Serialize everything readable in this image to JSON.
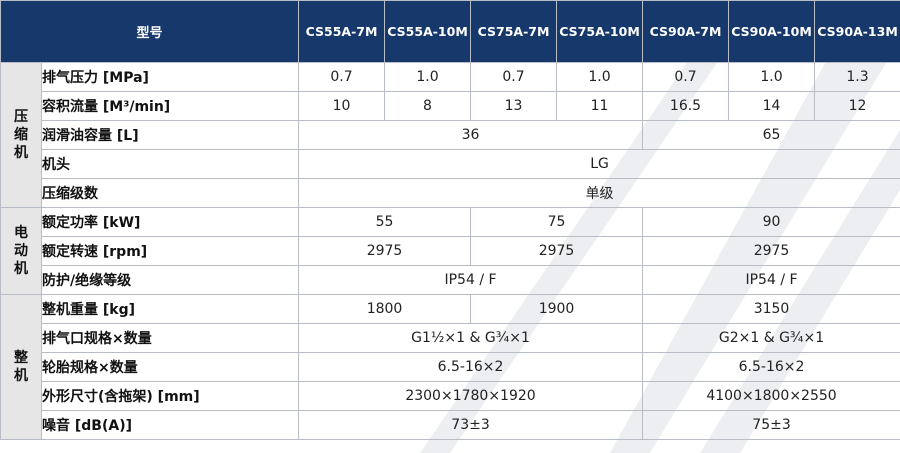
{
  "header": {
    "model_label": "型号",
    "models": [
      "CS55A-7M",
      "CS55A-10M",
      "CS75A-7M",
      "CS75A-10M",
      "CS90A-7M",
      "CS90A-10M",
      "CS90A-13M"
    ]
  },
  "groups": {
    "compressor": [
      "压",
      "缩",
      "机"
    ],
    "motor": [
      "电",
      "动",
      "机"
    ],
    "unit": [
      "整",
      "机"
    ]
  },
  "rows": {
    "exhaust_pressure": {
      "label": "排气压力 [MPa]",
      "values": [
        "0.7",
        "1.0",
        "0.7",
        "1.0",
        "0.7",
        "1.0",
        "1.3"
      ]
    },
    "volume_flow": {
      "label": "容积流量 [M³/min]",
      "values": [
        "10",
        "8",
        "13",
        "11",
        "16.5",
        "14",
        "12"
      ]
    },
    "oil_capacity": {
      "label": "润滑油容量 [L]",
      "values": [
        "36",
        "65"
      ]
    },
    "airend": {
      "label": "机头",
      "value": "LG"
    },
    "stages": {
      "label": "压缩级数",
      "value": "单级"
    },
    "rated_power": {
      "label": "额定功率 [kW]",
      "values": [
        "55",
        "75",
        "90"
      ]
    },
    "rated_speed": {
      "label": "额定转速 [rpm]",
      "values": [
        "2975",
        "2975",
        "2975"
      ]
    },
    "protection": {
      "label": "防护/绝缘等级",
      "values": [
        "IP54 / F",
        "IP54 / F"
      ]
    },
    "weight": {
      "label": "整机重量 [kg]",
      "values": [
        "1800",
        "1900",
        "3150"
      ]
    },
    "outlet": {
      "label": "排气口规格×数量",
      "values": [
        "G1½×1 & G¾×1",
        "G2×1 & G¾×1"
      ]
    },
    "tire": {
      "label": "轮胎规格×数量",
      "values": [
        "6.5-16×2",
        "6.5-16×2"
      ]
    },
    "dimensions": {
      "label": "外形尺寸(含拖架) [mm]",
      "values": [
        "2300×1780×1920",
        "4100×1800×2550"
      ]
    },
    "noise": {
      "label": "噪音 [dB(A)]",
      "values": [
        "73±3",
        "75±3"
      ]
    }
  }
}
